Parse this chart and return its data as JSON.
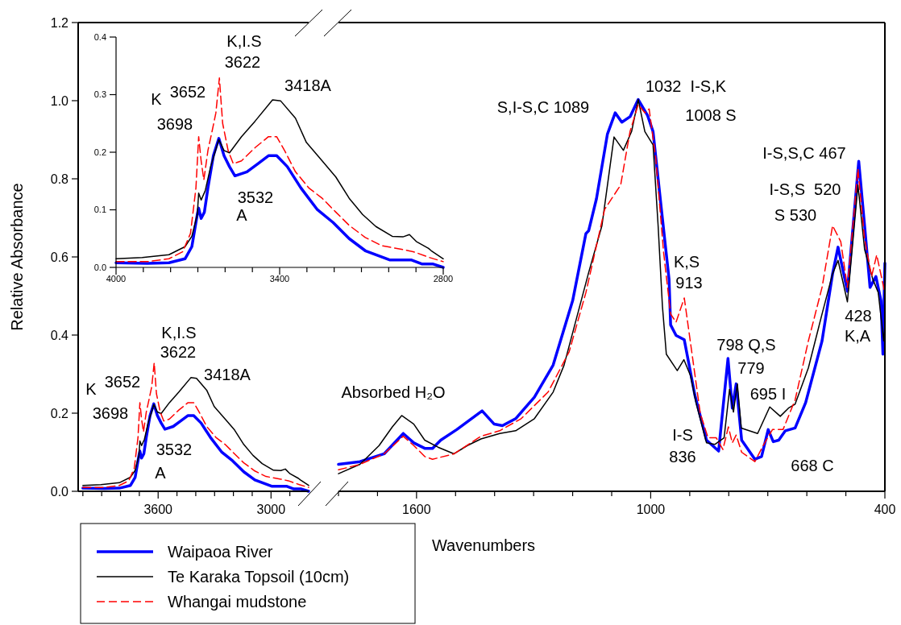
{
  "chart_data": [
    {
      "type": "line",
      "ylabel": "Relative Absorbance",
      "legend": "bottom right",
      "xlim": [
        4025,
        2800
      ],
      "xticks": [
        {
          "value": 4000,
          "label": null
        },
        {
          "value": 3900,
          "label": null
        },
        {
          "value": 3800,
          "label": null
        },
        {
          "value": 3700,
          "label": null
        },
        3600,
        {
          "value": 3500,
          "label": null
        },
        {
          "value": 3400,
          "label": null
        },
        {
          "value": 3300,
          "label": null
        },
        {
          "value": 3200,
          "label": null
        },
        {
          "value": 3100,
          "label": null
        },
        3000,
        {
          "value": 2900,
          "label": null
        }
      ],
      "ylim": [
        0,
        1.2
      ],
      "yticks": [
        {
          "value": 0,
          "label": "0.0"
        },
        {
          "value": 0.2,
          "label": "0.2"
        },
        {
          "value": 0.4,
          "label": "0.4"
        },
        {
          "value": 0.6,
          "label": "0.6"
        },
        {
          "value": 0.8,
          "label": "0.8"
        },
        {
          "value": 1.0,
          "label": "1.0"
        },
        {
          "value": 1.2,
          "label": "1.2"
        }
      ],
      "series": [
        {
          "name": "Waipaoa River",
          "color": "#0000ff",
          "line_style": "solid",
          "x": [
            4000,
            3885,
            3806,
            3747,
            3722,
            3702,
            3697,
            3688,
            3676,
            3663,
            3643,
            3623,
            3604,
            3584,
            3564,
            3520,
            3480,
            3441,
            3411,
            3372,
            3322,
            3263,
            3204,
            3145,
            3086,
            2997,
            2918,
            2879,
            2839,
            2800
          ],
          "values": [
            0.008,
            0.007,
            0.008,
            0.015,
            0.036,
            0.092,
            0.103,
            0.085,
            0.096,
            0.138,
            0.194,
            0.224,
            0.194,
            0.175,
            0.159,
            0.166,
            0.18,
            0.194,
            0.194,
            0.175,
            0.138,
            0.101,
            0.078,
            0.05,
            0.029,
            0.013,
            0.013,
            0.006,
            0.006,
            0.0
          ]
        },
        {
          "name": "Te Karaka Topsoil (10cm)",
          "color": "#000000",
          "line_style": "solid",
          "x": [
            4000,
            3904,
            3806,
            3747,
            3722,
            3702,
            3697,
            3688,
            3673,
            3653,
            3623,
            3604,
            3584,
            3540,
            3490,
            3426,
            3396,
            3342,
            3302,
            3244,
            3194,
            3145,
            3096,
            3047,
            2987,
            2948,
            2924,
            2899,
            2854,
            2844,
            2800
          ],
          "values": [
            0.015,
            0.017,
            0.022,
            0.036,
            0.054,
            0.092,
            0.129,
            0.117,
            0.133,
            0.175,
            0.222,
            0.203,
            0.199,
            0.227,
            0.254,
            0.291,
            0.289,
            0.259,
            0.217,
            0.185,
            0.157,
            0.12,
            0.092,
            0.071,
            0.054,
            0.053,
            0.057,
            0.045,
            0.033,
            0.029,
            0.015
          ]
        },
        {
          "name": "Whangai mudstone",
          "color": "#ff0000",
          "line_style": "dashed",
          "x": [
            4000,
            3885,
            3806,
            3756,
            3727,
            3707,
            3697,
            3688,
            3678,
            3663,
            3648,
            3634,
            3621,
            3609,
            3589,
            3570,
            3540,
            3490,
            3441,
            3411,
            3382,
            3342,
            3293,
            3244,
            3194,
            3145,
            3086,
            3027,
            2948,
            2908,
            2849,
            2800
          ],
          "values": [
            0.01,
            0.01,
            0.015,
            0.027,
            0.059,
            0.138,
            0.227,
            0.185,
            0.152,
            0.203,
            0.236,
            0.268,
            0.329,
            0.25,
            0.203,
            0.18,
            0.185,
            0.208,
            0.227,
            0.227,
            0.203,
            0.166,
            0.138,
            0.12,
            0.096,
            0.073,
            0.052,
            0.038,
            0.031,
            0.027,
            0.017,
            0.01
          ]
        }
      ],
      "annotations": [
        "K",
        "3652",
        "3698",
        "K,I.S",
        "3622",
        "3418A",
        "3532",
        "A"
      ]
    },
    {
      "type": "line",
      "xlabel": "Wavenumbers",
      "tick_labels": "x",
      "xlim": [
        1800,
        400
      ],
      "xticks": [
        {
          "value": 1800,
          "label": null
        },
        {
          "value": 1700,
          "label": null
        },
        1600,
        {
          "value": 1500,
          "label": null
        },
        {
          "value": 1400,
          "label": null
        },
        {
          "value": 1300,
          "label": null
        },
        {
          "value": 1200,
          "label": null
        },
        {
          "value": 1100,
          "label": null
        },
        1000,
        {
          "value": 900,
          "label": null
        },
        {
          "value": 800,
          "label": null
        },
        {
          "value": 700,
          "label": null
        },
        {
          "value": 600,
          "label": null
        },
        {
          "value": 500,
          "label": null
        },
        400
      ],
      "ylim": [
        0,
        1.2
      ],
      "series": [
        {
          "color": "#0000ff",
          "line_style": "solid",
          "x": [
            1800,
            1745,
            1683,
            1634,
            1607,
            1579,
            1559,
            1538,
            1497,
            1432,
            1401,
            1380,
            1346,
            1298,
            1250,
            1200,
            1166,
            1159,
            1139,
            1111,
            1091,
            1074,
            1053,
            1032,
            1008,
            994,
            974,
            953,
            949,
            935,
            914,
            887,
            857,
            826,
            802,
            791,
            781,
            767,
            733,
            716,
            699,
            686,
            672,
            655,
            630,
            603,
            561,
            534,
            520,
            496,
            467,
            452,
            438,
            423,
            410,
            405,
            400
          ],
          "values": [
            0.069,
            0.076,
            0.096,
            0.148,
            0.124,
            0.11,
            0.11,
            0.131,
            0.158,
            0.206,
            0.172,
            0.168,
            0.186,
            0.241,
            0.323,
            0.488,
            0.66,
            0.667,
            0.749,
            0.914,
            0.969,
            0.945,
            0.959,
            1.003,
            0.962,
            0.921,
            0.735,
            0.543,
            0.426,
            0.399,
            0.388,
            0.247,
            0.131,
            0.103,
            0.34,
            0.213,
            0.275,
            0.131,
            0.082,
            0.089,
            0.158,
            0.127,
            0.131,
            0.155,
            0.162,
            0.227,
            0.385,
            0.557,
            0.625,
            0.512,
            0.845,
            0.68,
            0.522,
            0.55,
            0.488,
            0.351,
            0.584
          ]
        },
        {
          "color": "#000000",
          "line_style": "solid",
          "x": [
            1800,
            1745,
            1696,
            1662,
            1638,
            1607,
            1579,
            1545,
            1504,
            1470,
            1435,
            1387,
            1346,
            1298,
            1250,
            1222,
            1159,
            1125,
            1094,
            1070,
            1049,
            1032,
            1015,
            994,
            981,
            970,
            960,
            932,
            915,
            898,
            884,
            857,
            836,
            812,
            798,
            788,
            778,
            768,
            726,
            695,
            668,
            647,
            630,
            596,
            561,
            534,
            520,
            496,
            469,
            452,
            431,
            417,
            403,
            400
          ],
          "values": [
            0.045,
            0.069,
            0.117,
            0.165,
            0.194,
            0.172,
            0.131,
            0.113,
            0.096,
            0.117,
            0.134,
            0.148,
            0.155,
            0.186,
            0.254,
            0.323,
            0.56,
            0.68,
            0.907,
            0.873,
            0.921,
            1.003,
            0.921,
            0.887,
            0.68,
            0.474,
            0.351,
            0.309,
            0.337,
            0.296,
            0.227,
            0.124,
            0.12,
            0.137,
            0.261,
            0.203,
            0.275,
            0.162,
            0.148,
            0.216,
            0.192,
            0.213,
            0.223,
            0.316,
            0.454,
            0.557,
            0.591,
            0.485,
            0.784,
            0.619,
            0.543,
            0.509,
            0.385,
            0.426
          ]
        },
        {
          "color": "#ff0000",
          "line_style": "dashed",
          "x": [
            1800,
            1745,
            1683,
            1634,
            1607,
            1579,
            1559,
            1504,
            1435,
            1387,
            1332,
            1263,
            1209,
            1166,
            1118,
            1077,
            1053,
            1032,
            1015,
            1004,
            987,
            967,
            949,
            935,
            914,
            894,
            873,
            853,
            832,
            815,
            801,
            791,
            781,
            767,
            733,
            712,
            688,
            661,
            630,
            596,
            561,
            534,
            513,
            496,
            469,
            452,
            434,
            421,
            403,
            400
          ],
          "values": [
            0.055,
            0.069,
            0.096,
            0.141,
            0.117,
            0.089,
            0.082,
            0.096,
            0.141,
            0.155,
            0.186,
            0.254,
            0.357,
            0.509,
            0.722,
            0.784,
            0.921,
            0.99,
            0.969,
            0.979,
            0.852,
            0.612,
            0.454,
            0.433,
            0.495,
            0.351,
            0.199,
            0.137,
            0.137,
            0.107,
            0.165,
            0.124,
            0.144,
            0.1,
            0.076,
            0.117,
            0.158,
            0.158,
            0.234,
            0.385,
            0.522,
            0.68,
            0.639,
            0.522,
            0.825,
            0.646,
            0.55,
            0.605,
            0.522,
            0.502
          ]
        }
      ],
      "annotations": [
        "Absorbed H₂O",
        "S,I-S,C 1089",
        "1032  I-S,K",
        "1008 S",
        "K,S",
        "913",
        "I-S,S,C 467",
        "I-S,S  520",
        "S 530",
        "428",
        "K,A",
        "798 Q,S",
        "779",
        "695 I",
        "I-S",
        "836",
        "668 C"
      ]
    },
    {
      "type": "line",
      "xlim": [
        4000,
        2800
      ],
      "xticks": [
        4000,
        {
          "value": 3900,
          "label": null
        },
        {
          "value": 3800,
          "label": null
        },
        {
          "value": 3700,
          "label": null
        },
        {
          "value": 3600,
          "label": null
        },
        {
          "value": 3500,
          "label": null
        },
        3400,
        {
          "value": 3300,
          "label": null
        },
        {
          "value": 3200,
          "label": null
        },
        {
          "value": 3100,
          "label": null
        },
        {
          "value": 3000,
          "label": null
        },
        {
          "value": 2900,
          "label": null
        },
        2800
      ],
      "ylim": [
        0,
        0.4
      ],
      "yticks": [
        {
          "value": 0,
          "label": "0.0"
        },
        {
          "value": 0.1,
          "label": "0.1"
        },
        {
          "value": 0.2,
          "label": "0.2"
        },
        {
          "value": 0.3,
          "label": "0.3"
        },
        {
          "value": 0.4,
          "label": "0.4"
        }
      ],
      "series": [
        {
          "color": "#0000ff",
          "line_style": "solid",
          "x": [
            4000,
            3885,
            3806,
            3747,
            3722,
            3702,
            3697,
            3688,
            3676,
            3663,
            3643,
            3623,
            3604,
            3584,
            3564,
            3520,
            3480,
            3441,
            3411,
            3372,
            3322,
            3263,
            3204,
            3145,
            3086,
            2997,
            2918,
            2879,
            2839,
            2800
          ],
          "values": [
            0.008,
            0.007,
            0.008,
            0.015,
            0.036,
            0.092,
            0.103,
            0.085,
            0.096,
            0.138,
            0.194,
            0.224,
            0.194,
            0.175,
            0.159,
            0.166,
            0.18,
            0.194,
            0.194,
            0.175,
            0.138,
            0.101,
            0.078,
            0.05,
            0.029,
            0.013,
            0.013,
            0.006,
            0.006,
            0.0
          ]
        },
        {
          "color": "#000000",
          "line_style": "solid",
          "x": [
            4000,
            3904,
            3806,
            3747,
            3722,
            3702,
            3697,
            3688,
            3673,
            3653,
            3623,
            3604,
            3584,
            3540,
            3490,
            3426,
            3396,
            3342,
            3302,
            3244,
            3194,
            3145,
            3096,
            3047,
            2987,
            2948,
            2924,
            2899,
            2854,
            2844,
            2800
          ],
          "values": [
            0.015,
            0.017,
            0.022,
            0.036,
            0.054,
            0.092,
            0.129,
            0.117,
            0.133,
            0.175,
            0.222,
            0.203,
            0.199,
            0.227,
            0.254,
            0.291,
            0.289,
            0.259,
            0.217,
            0.185,
            0.157,
            0.12,
            0.092,
            0.071,
            0.054,
            0.053,
            0.057,
            0.045,
            0.033,
            0.029,
            0.015
          ]
        },
        {
          "color": "#ff0000",
          "line_style": "dashed",
          "x": [
            4000,
            3885,
            3806,
            3756,
            3727,
            3707,
            3697,
            3688,
            3678,
            3663,
            3648,
            3634,
            3621,
            3609,
            3589,
            3570,
            3540,
            3490,
            3441,
            3411,
            3382,
            3342,
            3293,
            3244,
            3194,
            3145,
            3086,
            3027,
            2948,
            2908,
            2849,
            2800
          ],
          "values": [
            0.01,
            0.01,
            0.015,
            0.027,
            0.059,
            0.138,
            0.227,
            0.185,
            0.152,
            0.203,
            0.236,
            0.268,
            0.329,
            0.25,
            0.203,
            0.18,
            0.185,
            0.208,
            0.227,
            0.227,
            0.203,
            0.166,
            0.138,
            0.12,
            0.096,
            0.073,
            0.052,
            0.038,
            0.031,
            0.027,
            0.017,
            0.01
          ]
        }
      ],
      "annotations": [
        "K",
        "3652",
        "3698",
        "K,I.S",
        "3622",
        "3418A",
        "3532",
        "A"
      ]
    }
  ]
}
